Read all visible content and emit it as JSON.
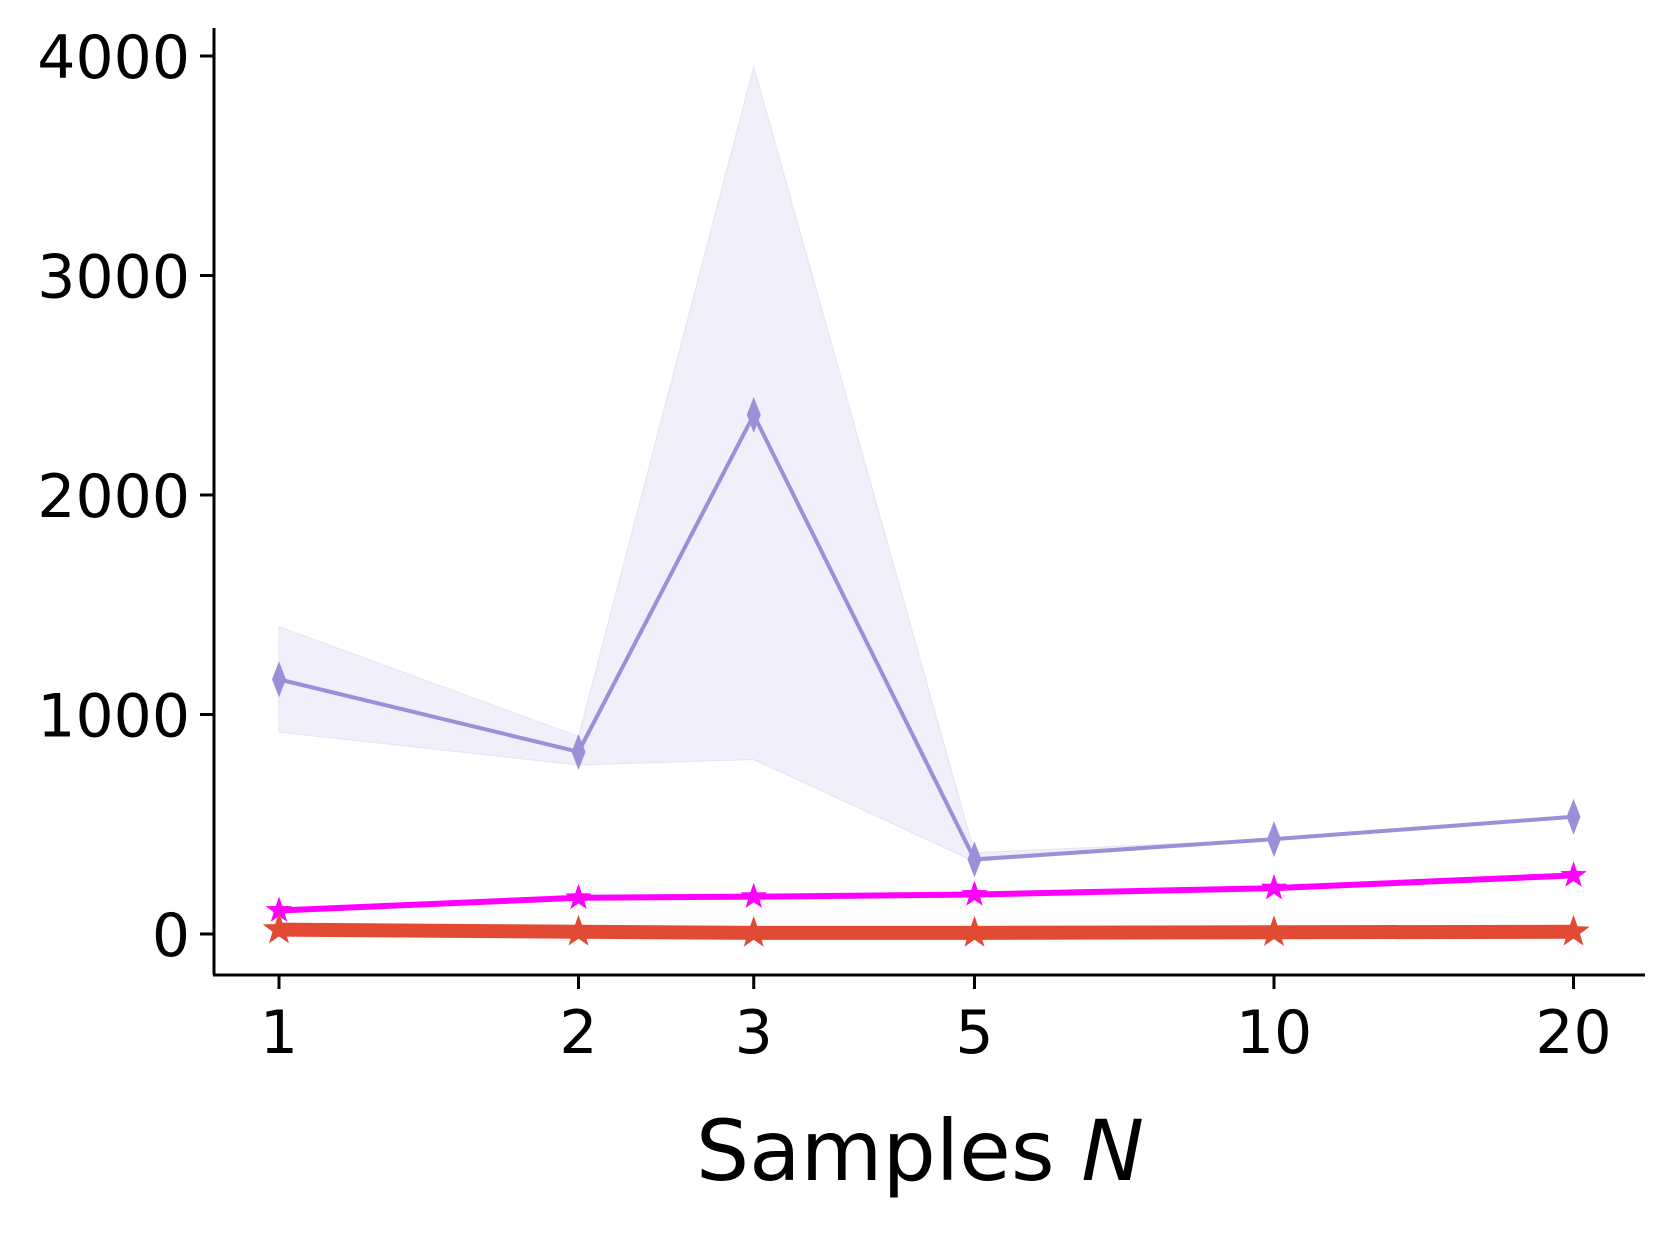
{
  "chart_data": {
    "type": "line",
    "title": "",
    "xlabel": "Samples",
    "xlabel_var": "N",
    "ylabel": "",
    "xscale": "log",
    "x": [
      1,
      2,
      3,
      5,
      10,
      20
    ],
    "x_tick_labels": [
      "1",
      "2",
      "3",
      "5",
      "10",
      "20"
    ],
    "y_ticks": [
      0,
      1000,
      2000,
      3000,
      4000
    ],
    "y_tick_labels": [
      "0",
      "1000",
      "2000",
      "3000",
      "4000"
    ],
    "ylim": [
      -180,
      4130
    ],
    "xlim": [
      0.86,
      23.5
    ],
    "grid": false,
    "legend": "none",
    "series": [
      {
        "name": "purple-diamond",
        "color": "#9b8fd8",
        "marker": "diamond",
        "values": [
          1160,
          830,
          2365,
          340,
          432,
          534
        ],
        "band_upper": [
          1400,
          900,
          3950,
          370,
          432,
          534
        ],
        "band_lower": [
          920,
          770,
          795,
          330,
          432,
          534
        ],
        "band_color": "#f1effa"
      },
      {
        "name": "magenta-star",
        "color": "#ff00ff",
        "marker": "star",
        "values": [
          107,
          165,
          170,
          180,
          209,
          267
        ]
      },
      {
        "name": "red-star",
        "color": "#e24a33",
        "marker": "star",
        "values": [
          20,
          10,
          5,
          5,
          8,
          10
        ]
      }
    ]
  }
}
